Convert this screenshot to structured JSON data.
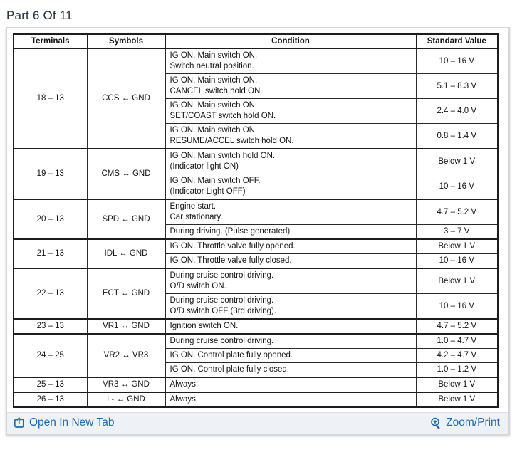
{
  "page": {
    "title": "Part 6 Of 11"
  },
  "table": {
    "headers": [
      "Terminals",
      "Symbols",
      "Condition",
      "Standard Value"
    ],
    "groups": [
      {
        "terminals": "18 – 13",
        "symbol": "CCS ↔ GND",
        "rows": [
          {
            "condition": [
              "IG ON. Main switch ON.",
              "Switch neutral position."
            ],
            "value": "10 – 16 V"
          },
          {
            "condition": [
              "IG ON. Main switch ON.",
              "CANCEL switch hold ON."
            ],
            "value": "5.1 – 8.3 V"
          },
          {
            "condition": [
              "IG ON. Main switch ON.",
              "SET/COAST switch hold ON."
            ],
            "value": "2.4 – 4.0 V"
          },
          {
            "condition": [
              "IG ON. Main switch ON.",
              "RESUME/ACCEL switch hold ON."
            ],
            "value": "0.8 – 1.4 V"
          }
        ]
      },
      {
        "terminals": "19 – 13",
        "symbol": "CMS ↔ GND",
        "rows": [
          {
            "condition": [
              "IG ON. Main switch hold ON.",
              "(Indicator light ON)"
            ],
            "value": "Below 1 V"
          },
          {
            "condition": [
              "IG ON. Main switch OFF.",
              "(Indicator Light OFF)"
            ],
            "value": "10 – 16 V"
          }
        ]
      },
      {
        "terminals": "20 – 13",
        "symbol": "SPD ↔ GND",
        "rows": [
          {
            "condition": [
              "Engine start.",
              "Car stationary."
            ],
            "value": "4.7 – 5.2 V"
          },
          {
            "condition": [
              "During driving. (Pulse generated)"
            ],
            "value": "3 – 7 V"
          }
        ]
      },
      {
        "terminals": "21 – 13",
        "symbol": "IDL ↔ GND",
        "rows": [
          {
            "condition": [
              "IG ON. Throttle valve fully opened."
            ],
            "value": "Below 1 V"
          },
          {
            "condition": [
              "IG ON. Throttle valve fully closed."
            ],
            "value": "10 – 16 V"
          }
        ]
      },
      {
        "terminals": "22 – 13",
        "symbol": "ECT ↔ GND",
        "rows": [
          {
            "condition": [
              "During cruise control driving.",
              "O/D switch ON."
            ],
            "value": "Below 1 V"
          },
          {
            "condition": [
              "During cruise control driving.",
              "O/D switch OFF (3rd driving)."
            ],
            "value": "10 – 16 V"
          }
        ]
      },
      {
        "terminals": "23 – 13",
        "symbol": "VR1 ↔ GND",
        "rows": [
          {
            "condition": [
              "Ignition switch ON."
            ],
            "value": "4.7 – 5.2 V"
          }
        ]
      },
      {
        "terminals": "24 – 25",
        "symbol": "VR2 ↔ VR3",
        "rows": [
          {
            "condition": [
              "During cruise control driving."
            ],
            "value": "1.0 – 4.7 V"
          },
          {
            "condition": [
              "IG ON. Control plate fully opened."
            ],
            "value": "4.2 – 4.7 V"
          },
          {
            "condition": [
              "IG ON. Control plate fully closed."
            ],
            "value": "1.0 – 1.2 V"
          }
        ]
      },
      {
        "terminals": "25 – 13",
        "symbol": "VR3 ↔ GND",
        "rows": [
          {
            "condition": [
              "Always."
            ],
            "value": "Below 1 V"
          }
        ]
      },
      {
        "terminals": "26 – 13",
        "symbol": "L- ↔ GND",
        "rows": [
          {
            "condition": [
              "Always."
            ],
            "value": "Below 1 V"
          }
        ]
      }
    ]
  },
  "footer": {
    "open_in_new_tab": "Open In New Tab",
    "zoom_print": "Zoom/Print"
  },
  "colors": {
    "link_blue": "#1c6ab3",
    "title_text": "#25323f",
    "footer_bg": "#eef1f5",
    "table_border": "#1d1d1d",
    "panel_border": "#d6d6d6"
  }
}
